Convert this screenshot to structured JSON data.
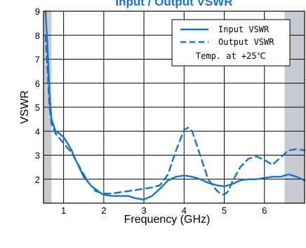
{
  "chart_data": {
    "type": "line",
    "title": "Input / Output VSWR",
    "xlabel": "Frequency (GHz)",
    "ylabel": "VSWR",
    "xlim": [
      0.5,
      7.0
    ],
    "ylim": [
      1,
      9
    ],
    "xticks": [
      1,
      2,
      3,
      4,
      5,
      6
    ],
    "yticks": [
      2,
      3,
      4,
      5,
      6,
      7,
      8,
      9
    ],
    "grid": true,
    "shaded_ranges": [
      [
        0.5,
        0.7
      ],
      [
        6.5,
        7.0
      ]
    ],
    "legend": {
      "placement": "top-right",
      "note": "Temp. at +25℃"
    },
    "series": [
      {
        "name": "Input VSWR",
        "style": "solid",
        "color": "#1a73c2",
        "x": [
          0.55,
          0.6,
          0.65,
          0.7,
          0.8,
          0.9,
          1.0,
          1.1,
          1.2,
          1.3,
          1.5,
          1.7,
          1.9,
          2.0,
          2.2,
          2.4,
          2.6,
          2.8,
          3.0,
          3.2,
          3.4,
          3.6,
          3.8,
          4.0,
          4.2,
          4.4,
          4.6,
          4.8,
          5.0,
          5.2,
          5.4,
          5.6,
          5.8,
          6.0,
          6.2,
          6.4,
          6.6,
          6.8,
          7.0
        ],
        "y": [
          9.0,
          7.5,
          5.5,
          4.5,
          4.0,
          3.9,
          3.75,
          3.5,
          3.2,
          2.8,
          2.1,
          1.7,
          1.45,
          1.35,
          1.3,
          1.3,
          1.3,
          1.2,
          1.15,
          1.3,
          1.6,
          1.95,
          2.1,
          2.15,
          2.1,
          2.0,
          1.85,
          1.75,
          1.7,
          1.8,
          1.95,
          2.0,
          2.0,
          2.05,
          2.1,
          2.1,
          2.2,
          2.1,
          1.95
        ]
      },
      {
        "name": "Output VSWR",
        "style": "dashed",
        "color": "#1a73c2",
        "x": [
          0.55,
          0.6,
          0.65,
          0.7,
          0.8,
          0.9,
          1.0,
          1.2,
          1.4,
          1.6,
          1.8,
          2.0,
          2.2,
          2.4,
          2.6,
          2.8,
          3.0,
          3.2,
          3.4,
          3.6,
          3.8,
          4.0,
          4.1,
          4.2,
          4.4,
          4.6,
          4.8,
          4.9,
          5.0,
          5.1,
          5.2,
          5.4,
          5.6,
          5.8,
          6.0,
          6.2,
          6.4,
          6.6,
          6.8,
          7.0
        ],
        "y": [
          8.0,
          6.5,
          5.0,
          4.3,
          3.9,
          3.7,
          3.5,
          3.1,
          2.5,
          1.9,
          1.5,
          1.4,
          1.4,
          1.45,
          1.5,
          1.55,
          1.6,
          1.65,
          1.75,
          2.2,
          3.2,
          4.05,
          4.15,
          4.0,
          3.0,
          2.0,
          1.55,
          1.4,
          1.35,
          1.5,
          1.9,
          2.5,
          2.85,
          2.95,
          2.8,
          2.6,
          2.9,
          3.2,
          3.25,
          3.2
        ]
      }
    ]
  }
}
